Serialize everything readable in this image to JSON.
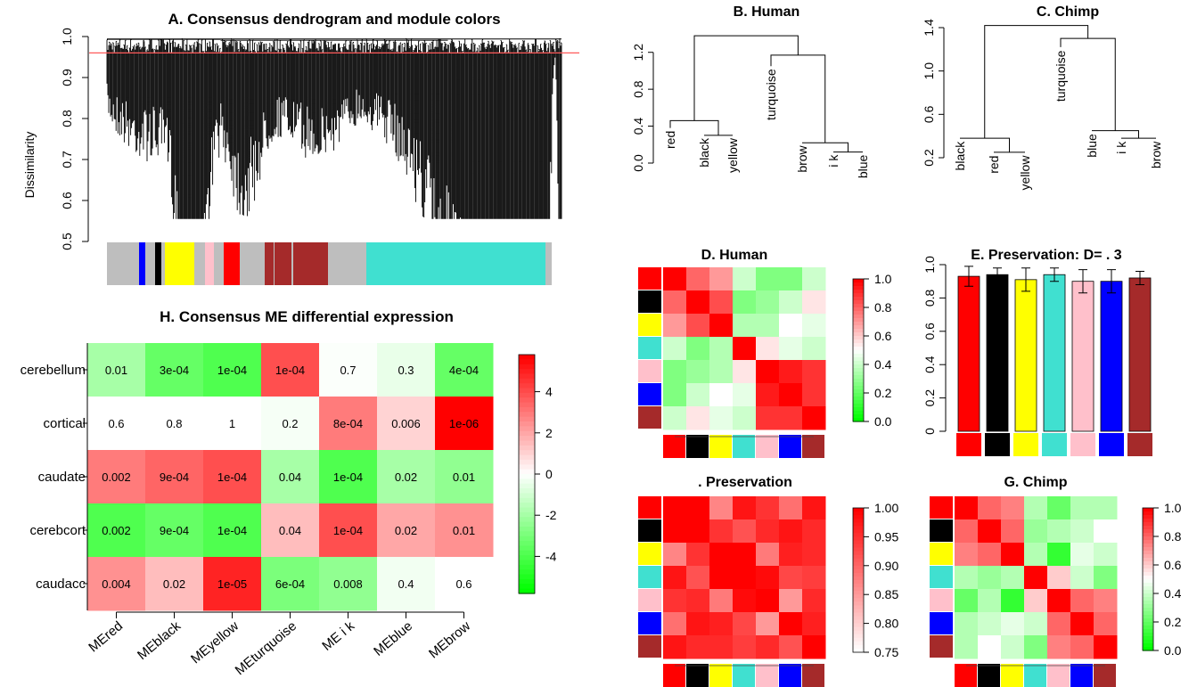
{
  "colors": {
    "red": "#ff0000",
    "black": "#000000",
    "yellow": "#ffff00",
    "turquoise": "#40e0d0",
    "pink": "#ffc0cb",
    "blue": "#0000ff",
    "brown": "#a52a2a",
    "grey": "#bebebe",
    "cutline": "#ff5a5a"
  },
  "panelA": {
    "title": "A. Consensus dendrogram and module colors",
    "ylabel": "Dissimilarity",
    "yticks": [
      "0.5",
      "0.6",
      "0.7",
      "0.8",
      "0.9",
      "1.0"
    ],
    "cut_height": 0.96,
    "ylim": [
      0.5,
      1.0
    ],
    "color_bar": [
      {
        "color": "grey",
        "w": 36
      },
      {
        "color": "blue",
        "w": 7
      },
      {
        "color": "grey",
        "w": 11
      },
      {
        "color": "black",
        "w": 7
      },
      {
        "color": "grey",
        "w": 4
      },
      {
        "color": "yellow",
        "w": 33
      },
      {
        "color": "grey",
        "w": 12
      },
      {
        "color": "pink",
        "w": 10
      },
      {
        "color": "grey",
        "w": 11
      },
      {
        "color": "red",
        "w": 18
      },
      {
        "color": "grey",
        "w": 28
      },
      {
        "color": "brown",
        "w": 10
      },
      {
        "color": "grey",
        "w": 1
      },
      {
        "color": "brown",
        "w": 19
      },
      {
        "color": "grey",
        "w": 2
      },
      {
        "color": "brown",
        "w": 39
      },
      {
        "color": "grey",
        "w": 43
      },
      {
        "color": "turquoise",
        "w": 201
      },
      {
        "color": "grey",
        "w": 7
      }
    ]
  },
  "panelB": {
    "title": "B. Human",
    "yticks": [
      "0.0",
      "0.4",
      "0.8",
      "1.2"
    ],
    "leaves": [
      "red",
      "black",
      "yellow",
      "turquoise",
      "brow",
      "i k",
      "blue"
    ]
  },
  "panelC": {
    "title": "C. Chimp",
    "yticks": [
      "0.2",
      "0.6",
      "1.0",
      "1.4"
    ],
    "leaves": [
      "black",
      "red",
      "yellow",
      "turquoise",
      "blue",
      "i k",
      "brow"
    ]
  },
  "scale_rg": {
    "ticks": [
      "1.0",
      "0.8",
      "0.6",
      "0.4",
      "0.2",
      "0.0"
    ]
  },
  "scale_pres": {
    "ticks": [
      "1.00",
      "0.95",
      "0.90",
      "0.85",
      "0.80",
      "0.75"
    ]
  },
  "panelD": {
    "title": "D.   Human"
  },
  "panelF": {
    "title": ".   Preservation"
  },
  "panelG": {
    "title": "G.   Chimp"
  },
  "panelE": {
    "title": "E.   Preservation: D=   . 3",
    "yticks": [
      "0",
      "0.2",
      "0.4",
      "0.6",
      "0.8",
      "1.0"
    ]
  },
  "panelH": {
    "title": "H. Consensus ME differential expression",
    "rows": [
      "cerebellum",
      "cortical",
      "caudate",
      "cerebcort",
      "caudacc"
    ],
    "cols": [
      "MEred",
      "MEblack",
      "MEyellow",
      "MEturquoise",
      "ME  i  k",
      "MEblue",
      "MEbrow"
    ],
    "scale_ticks": [
      "4",
      "2",
      "0",
      "-2",
      "-4"
    ]
  },
  "chart_data": [
    {
      "type": "dendrogram",
      "title": "A. Consensus dendrogram and module colors",
      "ylabel": "Dissimilarity",
      "ylim": [
        0.5,
        1.0
      ],
      "cut_height": 0.96,
      "module_colors": [
        "grey",
        "blue",
        "black",
        "yellow",
        "pink",
        "red",
        "brown",
        "turquoise"
      ]
    },
    {
      "type": "dendrogram",
      "title": "B. Human",
      "ylim": [
        0.0,
        1.4
      ],
      "leaves": [
        "red",
        "black",
        "yellow",
        "turquoise",
        "brow",
        "i k",
        "blue"
      ],
      "merges": [
        {
          "nodes": [
            "black",
            "yellow"
          ],
          "height": 0.3
        },
        {
          "nodes": [
            "red",
            "black+yellow"
          ],
          "height": 0.46
        },
        {
          "nodes": [
            "i k",
            "blue"
          ],
          "height": 0.12
        },
        {
          "nodes": [
            "brow",
            "i k+blue"
          ],
          "height": 0.22
        },
        {
          "nodes": [
            "turquoise",
            "brow+i k+blue"
          ],
          "height": 1.17
        },
        {
          "nodes": [
            "red+black+yellow",
            "turquoise+brow+i k+blue"
          ],
          "height": 1.38
        }
      ]
    },
    {
      "type": "dendrogram",
      "title": "C. Chimp",
      "ylim": [
        0.1,
        1.5
      ],
      "leaves": [
        "black",
        "red",
        "yellow",
        "turquoise",
        "blue",
        "i k",
        "brow"
      ],
      "merges": [
        {
          "nodes": [
            "red",
            "yellow"
          ],
          "height": 0.25
        },
        {
          "nodes": [
            "black",
            "red+yellow"
          ],
          "height": 0.38
        },
        {
          "nodes": [
            "i k",
            "brow"
          ],
          "height": 0.38
        },
        {
          "nodes": [
            "blue",
            "i k+brow"
          ],
          "height": 0.45
        },
        {
          "nodes": [
            "turquoise",
            "blue+i k+brow"
          ],
          "height": 1.3
        },
        {
          "nodes": [
            "black+red+yellow",
            "turquoise+blue+i k+brow"
          ],
          "height": 1.42
        }
      ]
    },
    {
      "type": "heatmap",
      "title": "D.   Human",
      "labels": [
        "red",
        "black",
        "yellow",
        "turquoise",
        "pink",
        "blue",
        "brown"
      ],
      "range": [
        0,
        1
      ],
      "values": [
        [
          1.0,
          0.8,
          0.7,
          0.4,
          0.25,
          0.25,
          0.4
        ],
        [
          0.8,
          1.0,
          0.85,
          0.25,
          0.3,
          0.4,
          0.55
        ],
        [
          0.7,
          0.85,
          1.0,
          0.35,
          0.35,
          0.5,
          0.45
        ],
        [
          0.4,
          0.25,
          0.35,
          1.0,
          0.55,
          0.45,
          0.4
        ],
        [
          0.25,
          0.3,
          0.35,
          0.55,
          1.0,
          0.95,
          0.9
        ],
        [
          0.25,
          0.4,
          0.5,
          0.45,
          0.95,
          1.0,
          0.9
        ],
        [
          0.4,
          0.55,
          0.45,
          0.4,
          0.9,
          0.9,
          1.0
        ]
      ]
    },
    {
      "type": "bar",
      "title": "E.   Preservation: D=   . 3",
      "categories": [
        "red",
        "black",
        "yellow",
        "turquoise",
        "pink",
        "blue",
        "brown"
      ],
      "values": [
        0.93,
        0.94,
        0.91,
        0.94,
        0.9,
        0.9,
        0.92
      ],
      "errors": [
        0.06,
        0.04,
        0.07,
        0.04,
        0.07,
        0.07,
        0.04
      ],
      "ylim": [
        0,
        1
      ]
    },
    {
      "type": "heatmap",
      "title": ".   Preservation",
      "labels": [
        "red",
        "black",
        "yellow",
        "turquoise",
        "pink",
        "blue",
        "brown"
      ],
      "range": [
        0.75,
        1.0
      ],
      "values": [
        [
          1.0,
          1.0,
          0.87,
          0.98,
          0.95,
          0.89,
          0.98
        ],
        [
          1.0,
          1.0,
          0.95,
          0.92,
          0.96,
          0.98,
          0.96
        ],
        [
          0.87,
          0.95,
          1.0,
          1.0,
          0.88,
          0.97,
          0.96
        ],
        [
          0.98,
          0.92,
          1.0,
          1.0,
          0.99,
          0.93,
          0.94
        ],
        [
          0.95,
          0.96,
          0.88,
          0.99,
          1.0,
          0.85,
          0.96
        ],
        [
          0.89,
          0.98,
          0.97,
          0.93,
          0.85,
          1.0,
          0.97
        ],
        [
          0.98,
          0.96,
          0.96,
          0.94,
          0.96,
          0.92,
          1.0
        ]
      ]
    },
    {
      "type": "heatmap",
      "title": "G.   Chimp",
      "labels": [
        "red",
        "black",
        "yellow",
        "turquoise",
        "pink",
        "blue",
        "brown"
      ],
      "range": [
        0,
        1
      ],
      "values": [
        [
          1.0,
          0.8,
          0.75,
          0.35,
          0.2,
          0.35,
          0.35
        ],
        [
          0.8,
          1.0,
          0.8,
          0.3,
          0.35,
          0.4,
          0.5
        ],
        [
          0.75,
          0.8,
          1.0,
          0.35,
          0.1,
          0.45,
          0.4
        ],
        [
          0.35,
          0.3,
          0.35,
          1.0,
          0.6,
          0.4,
          0.25
        ],
        [
          0.2,
          0.35,
          0.1,
          0.6,
          1.0,
          0.8,
          0.75
        ],
        [
          0.35,
          0.4,
          0.45,
          0.4,
          0.8,
          1.0,
          0.8
        ],
        [
          0.35,
          0.5,
          0.4,
          0.25,
          0.75,
          0.8,
          1.0
        ]
      ]
    },
    {
      "type": "heatmap",
      "title": "H. Consensus ME differential expression",
      "rows": [
        "cerebellum",
        "cortical",
        "caudate",
        "cerebcort",
        "caudacc"
      ],
      "cols": [
        "MEred",
        "MEblack",
        "MEyellow",
        "MEturquoise",
        "ME  i  k",
        "MEblue",
        "MEbrow"
      ],
      "range": [
        -5.8,
        5.8
      ],
      "values": [
        [
          -2.0,
          -3.5,
          -4.0,
          4.0,
          -0.1,
          -0.5,
          -3.5
        ],
        [
          0.0,
          0.0,
          0.0,
          -0.2,
          3.0,
          1.0,
          5.8
        ],
        [
          3.0,
          3.5,
          4.0,
          -2.0,
          -4.0,
          -2.0,
          -2.5
        ],
        [
          -4.0,
          -3.5,
          -4.0,
          1.5,
          4.0,
          2.0,
          2.5
        ],
        [
          2.5,
          1.5,
          5.0,
          -3.0,
          -2.5,
          -0.3,
          0.0
        ]
      ],
      "labels": [
        [
          "0.01",
          "3e-04",
          "1e-04",
          "1e-04",
          "0.7",
          "0.3",
          "4e-04"
        ],
        [
          "0.6",
          "0.8",
          "1",
          "0.2",
          "8e-04",
          "0.006",
          "1e-06"
        ],
        [
          "0.002",
          "9e-04",
          "1e-04",
          "0.04",
          "1e-04",
          "0.02",
          "0.01"
        ],
        [
          "0.002",
          "9e-04",
          "1e-04",
          "0.04",
          "1e-04",
          "0.02",
          "0.01"
        ],
        [
          "0.004",
          "0.02",
          "1e-05",
          "6e-04",
          "0.008",
          "0.4",
          "0.6"
        ]
      ]
    }
  ]
}
